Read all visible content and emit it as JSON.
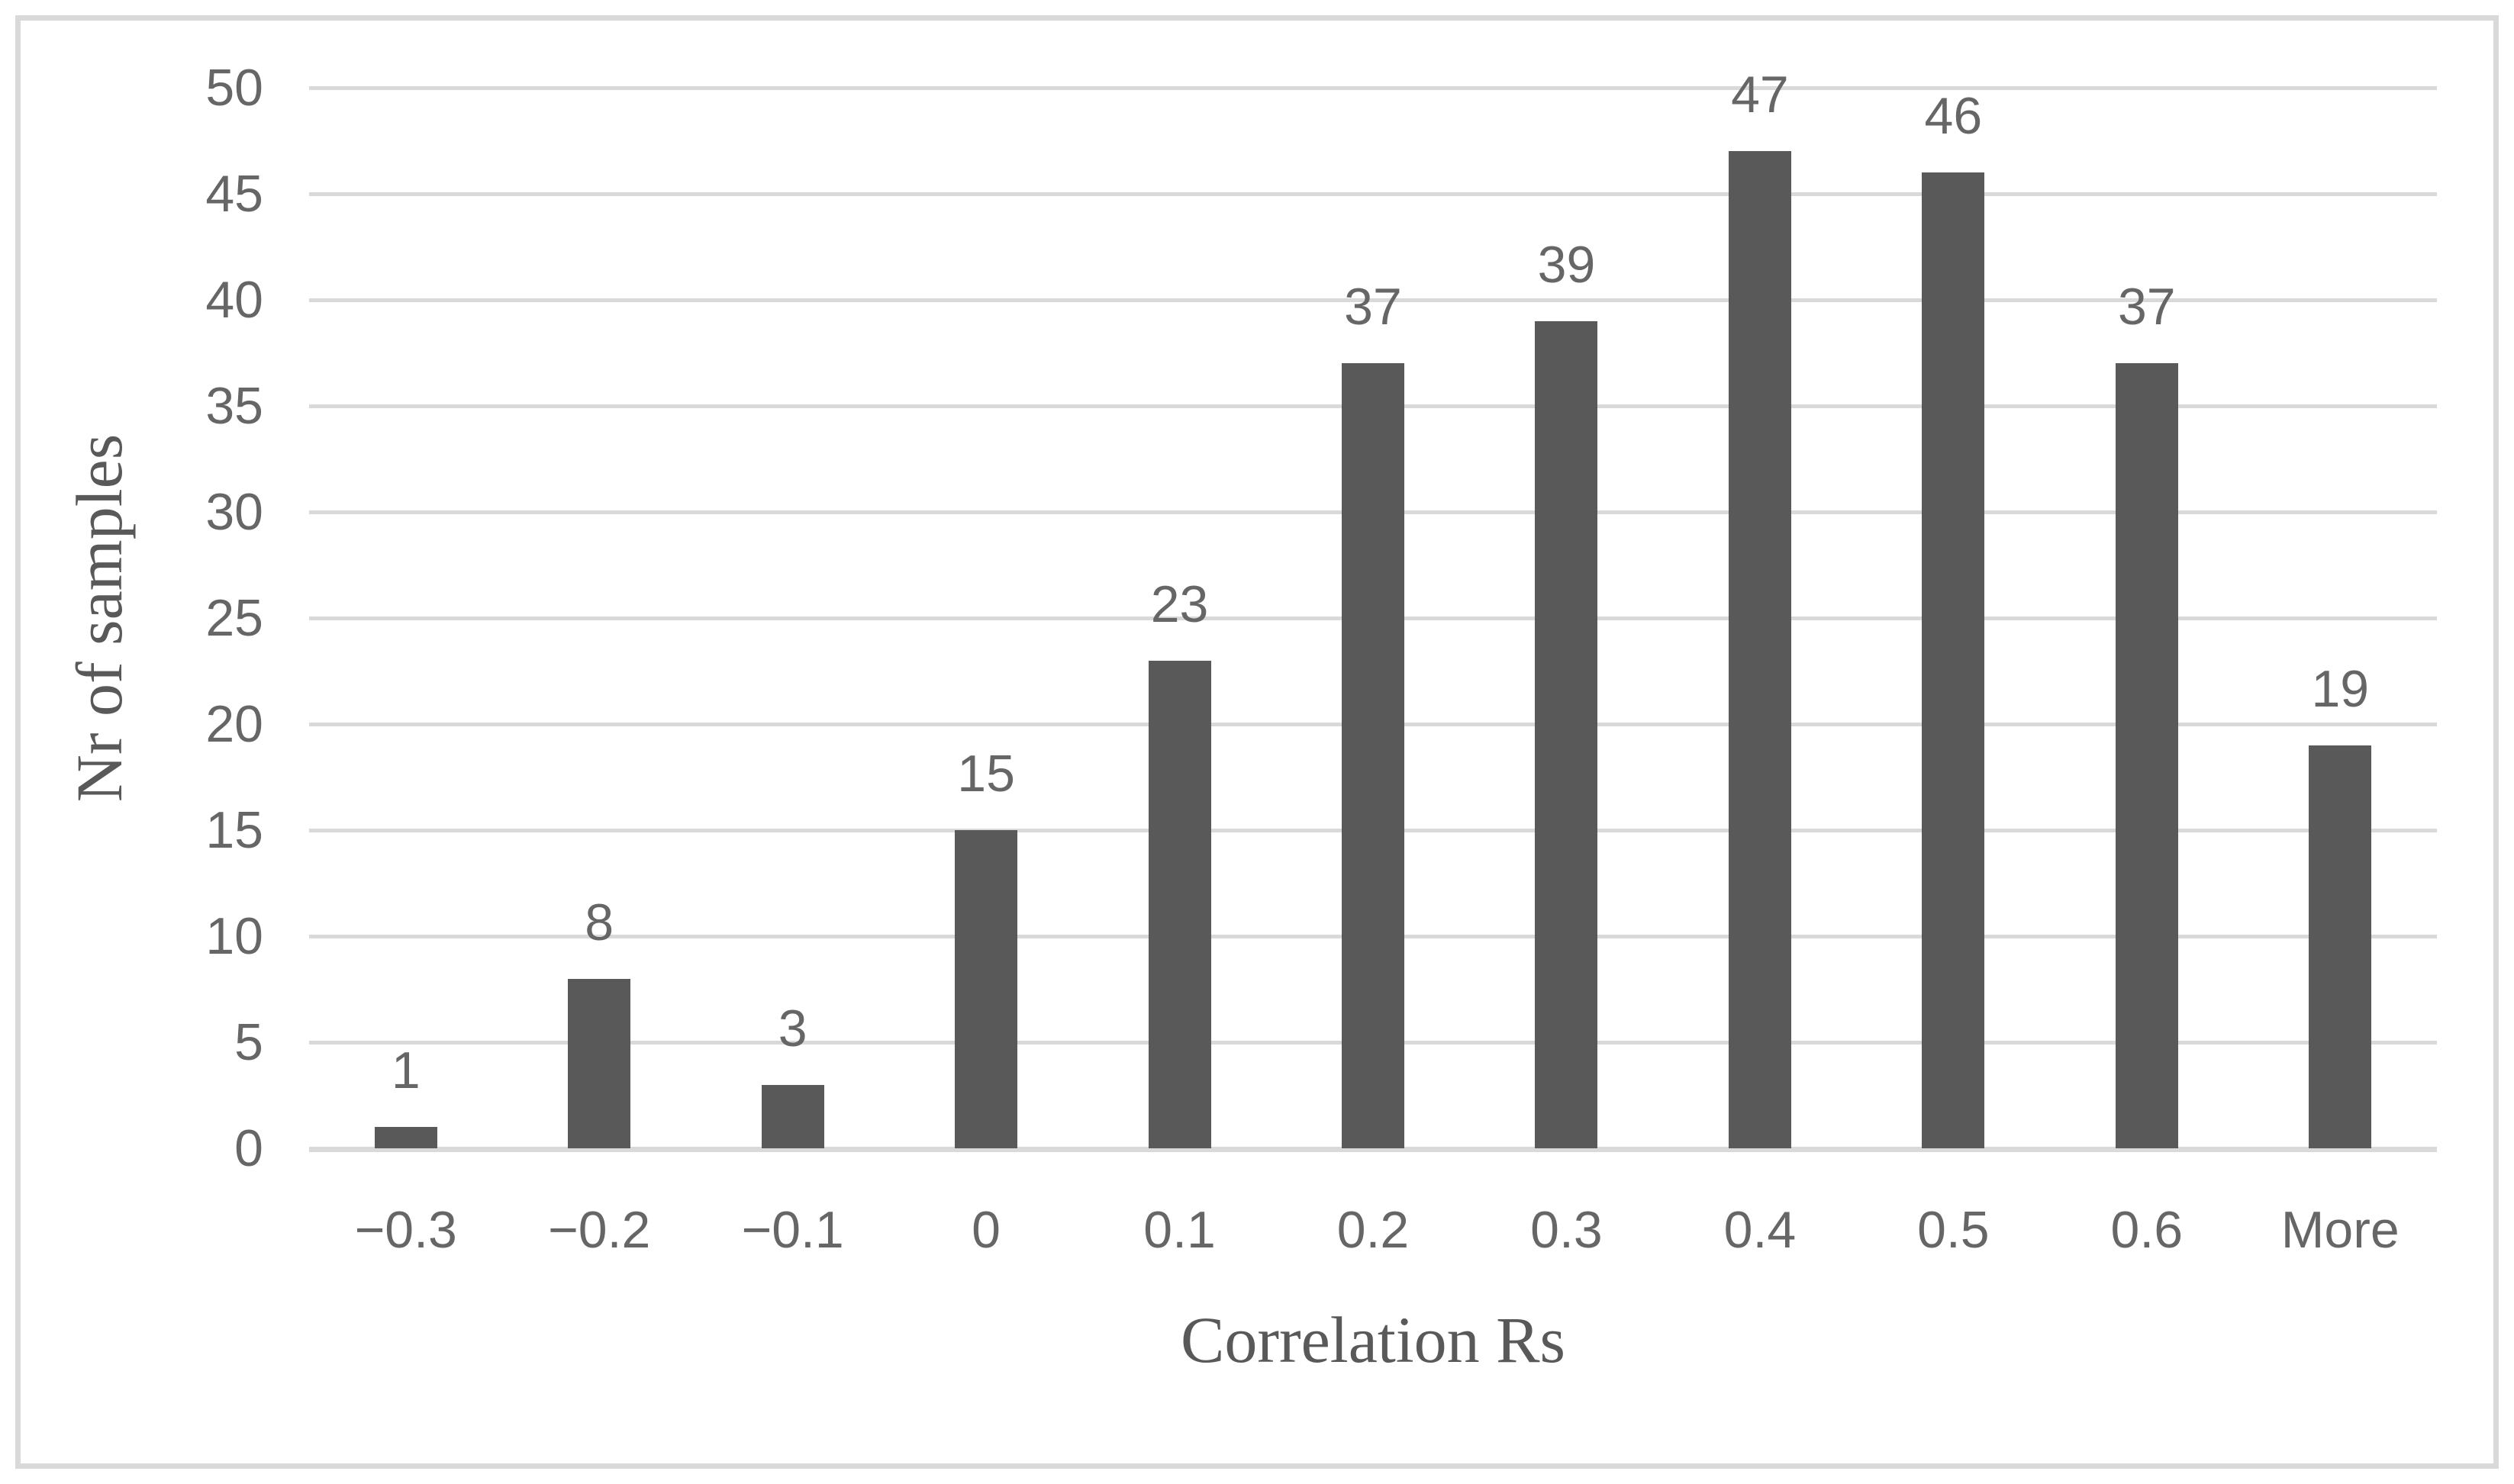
{
  "chart_data": {
    "type": "bar",
    "title": "",
    "categories": [
      "−0.3",
      "−0.2",
      "−0.1",
      "0",
      "0.1",
      "0.2",
      "0.3",
      "0.4",
      "0.5",
      "0.6",
      "More"
    ],
    "values": [
      1,
      8,
      3,
      15,
      23,
      37,
      39,
      47,
      46,
      37,
      19
    ],
    "data_labels": [
      1,
      8,
      3,
      15,
      23,
      37,
      39,
      47,
      46,
      37,
      19
    ],
    "xlabel": "Correlation Rs",
    "ylabel": "Nr of samples",
    "ylim": [
      0,
      50
    ],
    "ytick_step": 5,
    "yticks": [
      "0",
      "5",
      "10",
      "15",
      "20",
      "25",
      "30",
      "35",
      "40",
      "45",
      "50"
    ],
    "grid": "horizontal",
    "legend": "none",
    "colors": {
      "bar": "#595959",
      "gridline": "#d9d9d9",
      "frame_border": "#d9d9d9",
      "tick_text": "#666666",
      "axis_title_text": "#595959",
      "background": "#ffffff"
    }
  }
}
